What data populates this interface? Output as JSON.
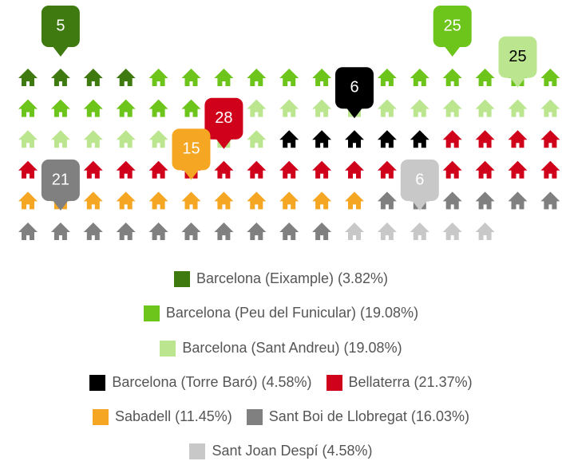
{
  "chart_data": {
    "type": "pictogram",
    "series": [
      {
        "label": "Barcelona (Eixample) (3.82%)",
        "value": 5,
        "percent": 3.82,
        "color": "#3f7a10",
        "label_color": "#ffffff"
      },
      {
        "label": "Barcelona (Peu del Funicular) (19.08%)",
        "value": 25,
        "percent": 19.08,
        "color": "#6dc41a",
        "label_color": "#ffffff"
      },
      {
        "label": "Barcelona (Sant Andreu) (19.08%)",
        "value": 25,
        "percent": 19.08,
        "color": "#bbe68f",
        "label_color": "#000000"
      },
      {
        "label": "Barcelona (Torre Baró) (4.58%)",
        "value": 6,
        "percent": 4.58,
        "color": "#000000",
        "label_color": "#ffffff"
      },
      {
        "label": "Bellaterra (21.37%)",
        "value": 28,
        "percent": 21.37,
        "color": "#d0021b",
        "label_color": "#ffffff"
      },
      {
        "label": "Sabadell (11.45%)",
        "value": 15,
        "percent": 11.45,
        "color": "#f5a623",
        "label_color": "#ffffff"
      },
      {
        "label": "Sant Boi de Llobregat (16.03%)",
        "value": 21,
        "percent": 16.03,
        "color": "#808080",
        "label_color": "#ffffff"
      },
      {
        "label": "Sant Joan Despí (4.58%)",
        "value": 6,
        "percent": 4.58,
        "color": "#c8c8c8",
        "label_color": "#ffffff"
      }
    ]
  }
}
